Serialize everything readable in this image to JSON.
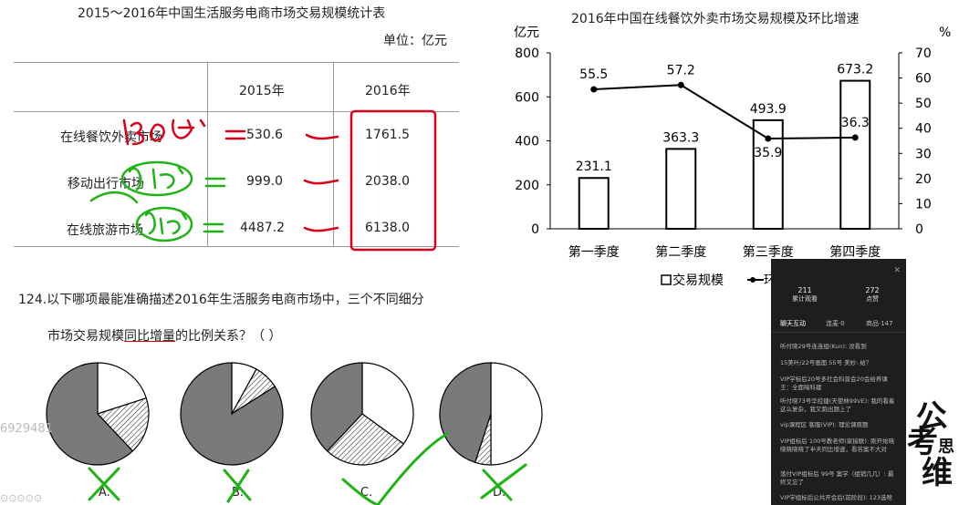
{
  "table": {
    "title": "2015～2016年中国生活服务电商市场交易规模统计表",
    "unit": "单位：亿元",
    "headers": [
      "2015年",
      "2016年"
    ],
    "rows": [
      {
        "label": "在线餐饮外卖市场",
        "v2015": "530.6",
        "v2016": "1761.5"
      },
      {
        "label": "移动出行市场",
        "v2015": "999.0",
        "v2016": "2038.0"
      },
      {
        "label": "在线旅游市场",
        "v2015": "4487.2",
        "v2016": "6138.0"
      }
    ]
  },
  "question": {
    "line1": "124.以下哪项最能准确描述2016年生活服务电商市场中，三个不同细分",
    "line2_prefix": "市场交易规模",
    "line2_underlined": "同比增量",
    "line2_suffix": "的比例关系？（ ）",
    "options": [
      "A.",
      "B.",
      "C.",
      "D."
    ]
  },
  "chart_data": {
    "type": "bar",
    "title": "2016年中国在线餐饮外卖市场交易规模及环比增速",
    "categories": [
      "第一季度",
      "第二季度",
      "第三季度",
      "第四季度"
    ],
    "series": [
      {
        "name": "交易规模",
        "type": "bar",
        "values": [
          231.1,
          363.3,
          493.9,
          673.2
        ],
        "labels": [
          "231.1",
          "363.3",
          "493.9",
          "673.2"
        ]
      },
      {
        "name": "环",
        "type": "line",
        "values": [
          55.5,
          57.2,
          35.9,
          36.3
        ],
        "labels": [
          "55.5",
          "57.2",
          "35.9",
          "36.3"
        ]
      }
    ],
    "left_unit": "亿元",
    "right_unit": "%",
    "left_ticks": [
      "0",
      "200",
      "400",
      "600",
      "800"
    ],
    "right_ticks": [
      "0",
      "10",
      "20",
      "30",
      "40",
      "50",
      "60",
      "70"
    ],
    "ylim_left": [
      0,
      800
    ],
    "ylim_right": [
      0,
      70
    ],
    "legend_position": "bottom"
  },
  "pies": [
    {
      "name": "A",
      "shares": [
        0.62,
        0.18,
        0.2
      ]
    },
    {
      "name": "B",
      "shares": [
        0.84,
        0.08,
        0.08
      ]
    },
    {
      "name": "C",
      "shares": [
        0.38,
        0.27,
        0.35
      ]
    },
    {
      "name": "D",
      "shares": [
        0.45,
        0.05,
        0.5
      ]
    }
  ],
  "overlay": {
    "stat1_value": "211",
    "stat1_label": "累计观看",
    "stat2_value": "272",
    "stat2_label": "点赞",
    "tabs": [
      "聊天互动",
      "连麦·0",
      "商品·147"
    ],
    "messages": [
      "听付晓29号连连组(Kun): 没看到",
      "15美叶/22号画面 55号 美妙: 给？",
      "VIP学标后20号多社会科普会20会给养课王：全面暗科建",
      "听付晓73号华控建(天使林99VE): 我的看着这么复杂，我又跑出题上了",
      "vip课程区 客服(VIP): 理论课原题",
      "VIP组标后 100号教老师(家接联): 刚开始晓晓晓晓晓了半天同比增速，看答案不大对",
      "落付VIP组标后 99号 案学（组销几几）: 最终又忘了",
      "VIP学组标后公共开会后(前阶段): 123选啥"
    ]
  },
  "watermark": "6929481",
  "logo_text": "公考思维",
  "colors": {
    "annotation_red": "#d9001b",
    "annotation_green": "#1fb316",
    "pie_dark": "#7a7a7a",
    "overlay_bg": "#1e1e1e"
  }
}
